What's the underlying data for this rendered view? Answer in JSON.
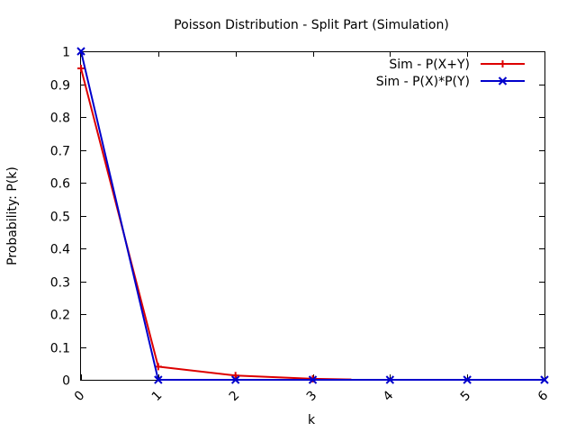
{
  "chart_data": {
    "type": "line",
    "title": "Poisson Distribution - Split Part (Simulation)",
    "xlabel": "k",
    "ylabel": "Probability: P(k)",
    "xlim": [
      0,
      6
    ],
    "ylim": [
      0,
      1
    ],
    "x_ticks": [
      "0",
      "1",
      "2",
      "3",
      "4",
      "5",
      "6"
    ],
    "y_ticks": [
      "0",
      "0.1",
      "0.2",
      "0.3",
      "0.4",
      "0.5",
      "0.6",
      "0.7",
      "0.8",
      "0.9",
      "1"
    ],
    "grid": false,
    "legend_position": "top-right",
    "series": [
      {
        "name": "Sim - P(X+Y)",
        "color": "#dd0000",
        "marker": "plus",
        "x": [
          0,
          1,
          2,
          3,
          3.5
        ],
        "y": [
          0.948,
          0.04,
          0.013,
          0.003,
          0.001
        ]
      },
      {
        "name": "Sim - P(X)*P(Y)",
        "color": "#0000cc",
        "marker": "cross",
        "x": [
          0,
          1,
          2,
          3,
          4,
          5,
          6
        ],
        "y": [
          1.0,
          0.0,
          0.0,
          0.0,
          0.0,
          0.0,
          0.0
        ]
      }
    ]
  }
}
